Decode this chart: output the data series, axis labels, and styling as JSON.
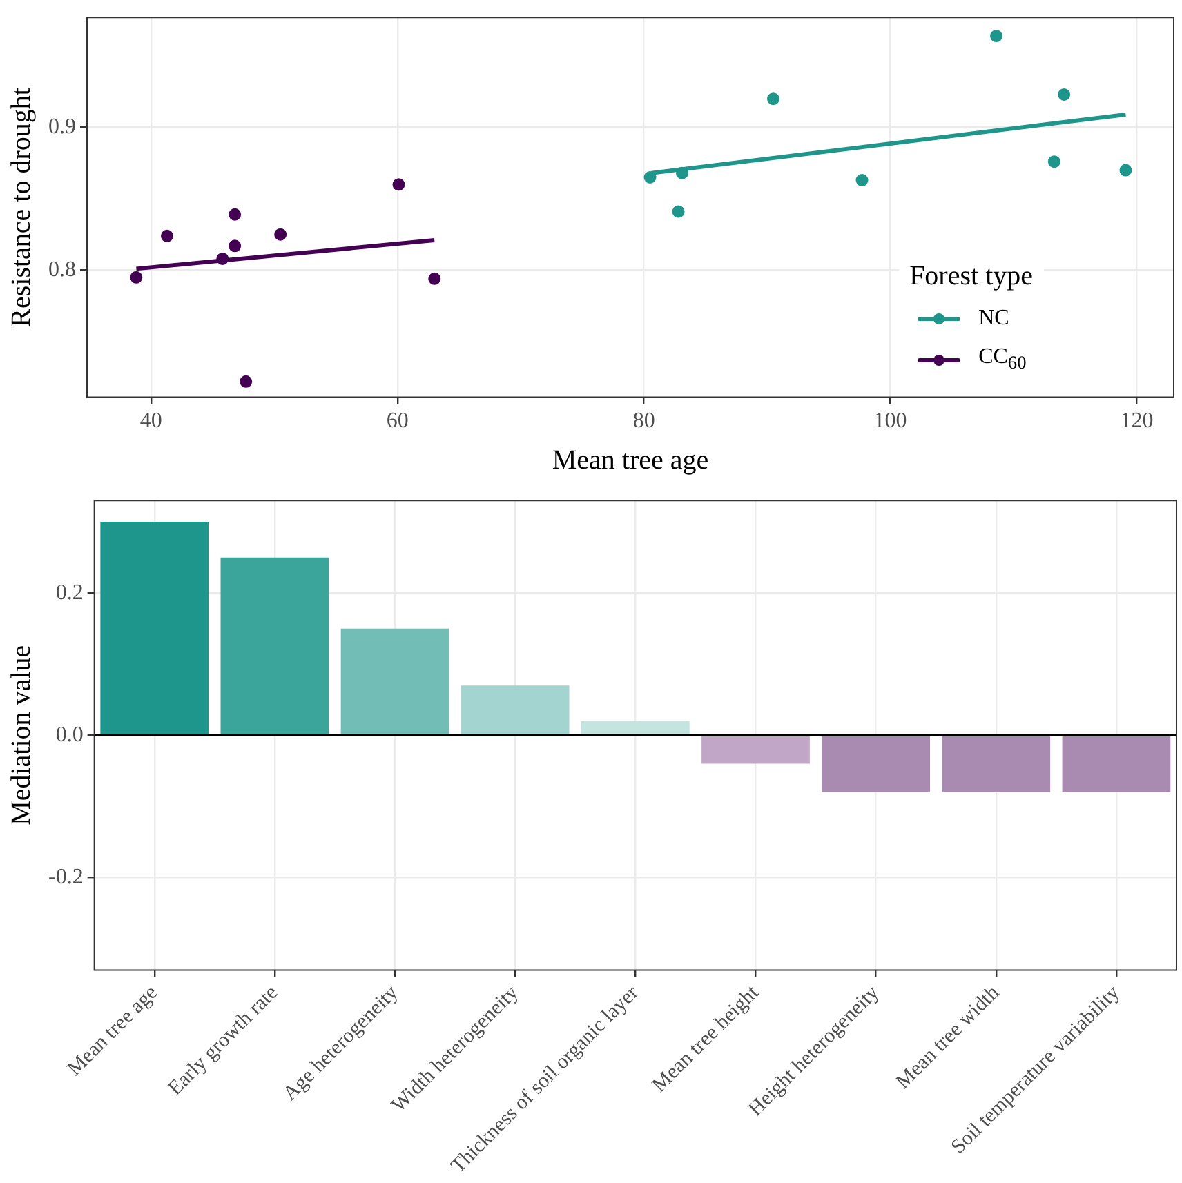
{
  "chart_data": [
    {
      "type": "scatter",
      "xlabel": "Mean tree age",
      "ylabel": "Resistance to drought",
      "legend_title": "Forest type",
      "legend": "bottom right",
      "grid": true,
      "marker": "circle",
      "xlim": [
        34.8,
        123
      ],
      "xticks": [
        40,
        60,
        80,
        100,
        120
      ],
      "ylim": [
        0.711,
        0.977
      ],
      "yticks": [
        0.8,
        0.9
      ],
      "series": [
        {
          "name": "NC",
          "type": "scatter",
          "color": "#1f968b",
          "x": [
            80.5,
            82.8,
            83.1,
            90.5,
            97.7,
            108.6,
            114.1,
            113.3,
            119.1
          ],
          "values": [
            0.865,
            0.841,
            0.868,
            0.92,
            0.863,
            0.964,
            0.923,
            0.876,
            0.87
          ]
        },
        {
          "type": "line",
          "marker": "none",
          "color": "#1f968b",
          "x": [
            80.6,
            119.1
          ],
          "values": [
            0.868,
            0.909
          ]
        },
        {
          "name": "CC$_{60}$",
          "type": "scatter",
          "color": "#440154",
          "x": [
            38.8,
            41.3,
            46.8,
            46.8,
            45.8,
            50.5,
            60.1,
            63.0,
            47.7
          ],
          "values": [
            0.795,
            0.824,
            0.839,
            0.817,
            0.808,
            0.825,
            0.86,
            0.794,
            0.722
          ]
        },
        {
          "type": "line",
          "marker": "none",
          "color": "#440154",
          "x": [
            38.8,
            63.0
          ],
          "values": [
            0.801,
            0.821
          ]
        }
      ]
    },
    {
      "type": "bar",
      "ylabel": "Mediation value",
      "grid": true,
      "categories": [
        "Mean tree age",
        "Early growth rate",
        "Age heterogeneity",
        "Width heterogeneity",
        "Thickness of soil organic layer",
        "Mean tree height",
        "Height heterogeneity",
        "Mean tree width",
        "Soil temperature variability"
      ],
      "values": [
        0.3,
        0.25,
        0.15,
        0.07,
        0.02,
        -0.04,
        -0.08,
        -0.08,
        -0.08
      ],
      "colors": [
        "#1f968b",
        "#3ca59b",
        "#72bdb5",
        "#a3d4cf",
        "#c4e4e0",
        "#c1a6c8",
        "#a98bb1",
        "#a98bb1",
        "#a98bb1"
      ],
      "ylim": [
        -0.33,
        0.33
      ],
      "yticks": [
        -0.2,
        {
          "value": 0,
          "label": "0.0"
        },
        0.2
      ],
      "ref_lines": [
        {
          "axis": "y",
          "value": 0,
          "color": "#000000"
        }
      ]
    }
  ]
}
